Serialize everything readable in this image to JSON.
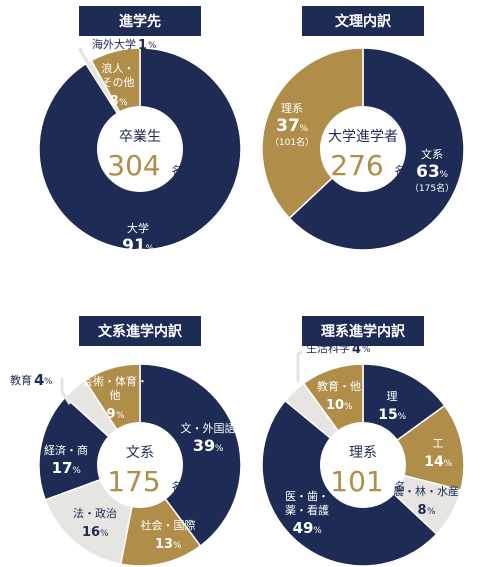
{
  "colors": {
    "navy": "#1d2b55",
    "gold": "#b08e4a",
    "light": "#e7e5e1",
    "white": "#ffffff"
  },
  "chart_data": [
    {
      "type": "pie",
      "title": "進学先",
      "center": {
        "label": "卒業生",
        "value": "304",
        "unit": "名"
      },
      "slices": [
        {
          "name": "大学",
          "value": 91,
          "color": "navy",
          "value_color": "white"
        },
        {
          "name": "海外大学",
          "value": 1,
          "color": "light",
          "value_color": "navy"
        },
        {
          "name": "浪人・その他",
          "value": 8,
          "color": "gold",
          "value_color": "white"
        }
      ]
    },
    {
      "type": "pie",
      "title": "文理内訳",
      "center": {
        "label": "大学進学者",
        "value": "276",
        "unit": "名"
      },
      "slices": [
        {
          "name": "文系",
          "value": 63,
          "count": "（175名）",
          "color": "navy",
          "value_color": "white"
        },
        {
          "name": "理系",
          "value": 37,
          "count": "（101名）",
          "color": "gold",
          "value_color": "white"
        }
      ]
    },
    {
      "type": "pie",
      "title": "文系進学内訳",
      "center": {
        "label": "文系",
        "value": "175",
        "unit": "名"
      },
      "slices": [
        {
          "name": "文・外国語",
          "value": 39,
          "color": "navy",
          "value_color": "white"
        },
        {
          "name": "社会・国際",
          "value": 13,
          "color": "gold",
          "value_color": "white"
        },
        {
          "name": "法・政治",
          "value": 16,
          "color": "light",
          "value_color": "navy"
        },
        {
          "name": "経済・商",
          "value": 17,
          "color": "navy",
          "value_color": "white"
        },
        {
          "name": "教育",
          "value": 4,
          "color": "light",
          "value_color": "navy"
        },
        {
          "name": "芸術・体育・他",
          "value": 9,
          "color": "gold",
          "value_color": "white"
        }
      ]
    },
    {
      "type": "pie",
      "title": "理系進学内訳",
      "center": {
        "label": "理系",
        "value": "101",
        "unit": "名"
      },
      "slices": [
        {
          "name": "理",
          "value": 15,
          "color": "navy",
          "value_color": "white"
        },
        {
          "name": "工",
          "value": 14,
          "color": "gold",
          "value_color": "white"
        },
        {
          "name": "農・林・水産",
          "value": 8,
          "color": "light",
          "value_color": "navy"
        },
        {
          "name": "医・歯・薬・看護",
          "value": 49,
          "color": "navy",
          "value_color": "white"
        },
        {
          "name": "生活科学",
          "value": 4,
          "color": "light",
          "value_color": "navy"
        },
        {
          "name": "教育・他",
          "value": 10,
          "color": "gold",
          "value_color": "white"
        }
      ]
    }
  ]
}
